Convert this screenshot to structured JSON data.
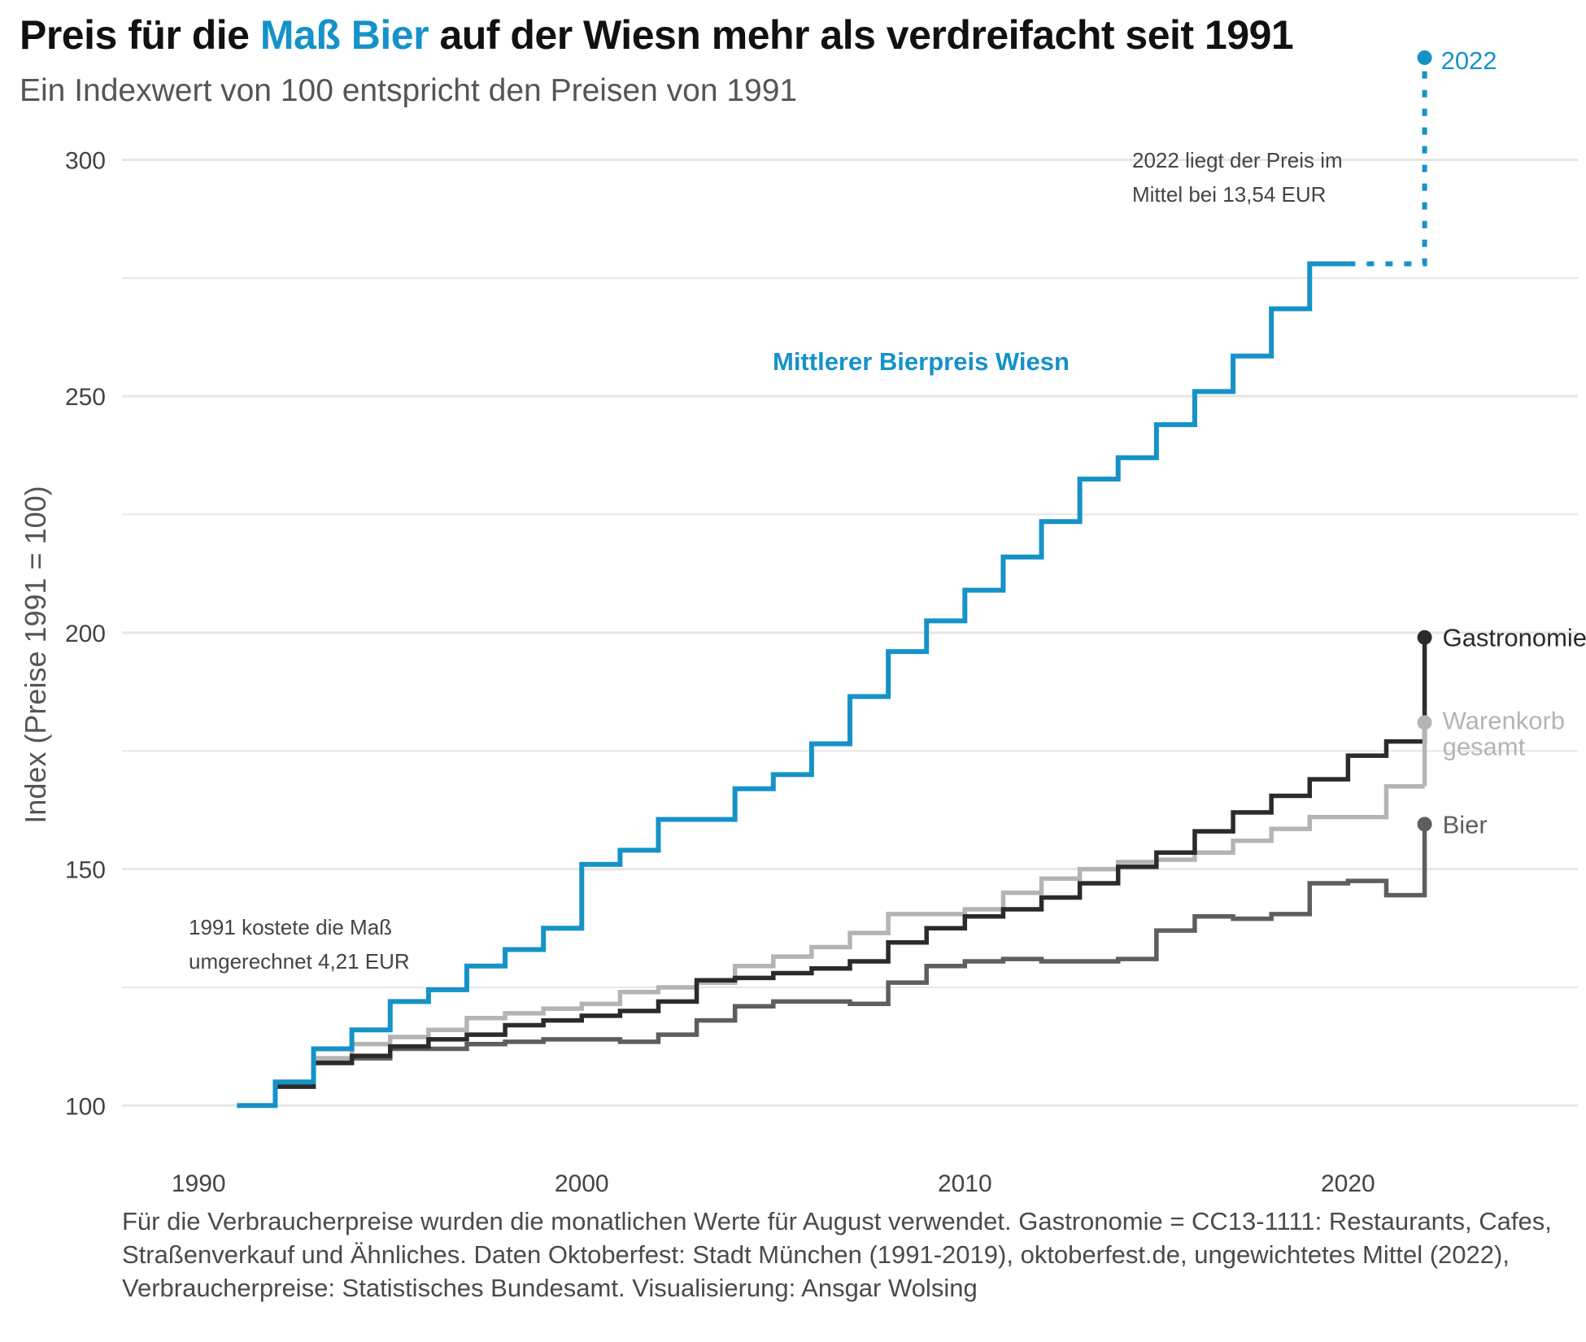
{
  "title": {
    "part1": "Preis für die ",
    "highlight": "Maß Bier",
    "part2": " auf der Wiesn mehr als verdreifacht seit 1991"
  },
  "subtitle": "Ein Indexwert von 100 entspricht den Preisen von 1991",
  "caption": "Für die Verbraucherpreise wurden die monatlichen Werte für August verwendet. Gastronomie = CC13-1111: Restaurants, Cafes, Straßenverkauf und Ähnliches. Daten Oktoberfest: Stadt München (1991-2019), oktoberfest.de, ungewichtetes Mittel (2022), Verbraucherpreise: Statistisches Bundesamt. Visualisierung: Ansgar Wolsing",
  "colors": {
    "accent": "#1592c8",
    "gastronomie": "#2b2b2b",
    "warenkorb": "#b4b4b4",
    "bier": "#5e5e5e",
    "grid": "#e6e6e6"
  },
  "chart_data": {
    "type": "line",
    "step": true,
    "ylabel": "Index (Preise 1991 = 100)",
    "xlim": [
      1988,
      2026
    ],
    "ylim": [
      93,
      308
    ],
    "x_ticks": [
      1990,
      2000,
      2010,
      2020
    ],
    "y_ticks": [
      100,
      150,
      200,
      250,
      300
    ],
    "grid": true,
    "series": [
      {
        "name": "Mittlerer Bierpreis Wiesn",
        "color": "#1592c8",
        "x": [
          1991,
          1992,
          1993,
          1994,
          1995,
          1996,
          1997,
          1998,
          1999,
          2000,
          2001,
          2002,
          2003,
          2004,
          2005,
          2006,
          2007,
          2008,
          2009,
          2010,
          2011,
          2012,
          2013,
          2014,
          2015,
          2016,
          2017,
          2018,
          2019,
          2020
        ],
        "values": [
          100,
          105,
          112,
          116,
          122,
          124.5,
          129.5,
          133,
          137.5,
          151,
          154,
          160.5,
          160.5,
          167,
          170,
          176.5,
          186.5,
          196,
          202.5,
          209,
          216,
          223.5,
          232.5,
          237,
          244,
          251,
          258.5,
          268.5,
          278,
          278
        ]
      },
      {
        "name": "Gastronomie",
        "color": "#2b2b2b",
        "x": [
          1992,
          1993,
          1994,
          1995,
          1996,
          1997,
          1998,
          1999,
          2000,
          2001,
          2002,
          2003,
          2004,
          2005,
          2006,
          2007,
          2008,
          2009,
          2010,
          2011,
          2012,
          2013,
          2014,
          2015,
          2016,
          2017,
          2018,
          2019,
          2020,
          2021,
          2022
        ],
        "values": [
          104,
          109,
          110.5,
          112.5,
          114,
          115,
          117,
          118,
          119,
          120,
          122,
          126.5,
          127,
          128,
          129,
          130.5,
          134.5,
          137.5,
          140,
          141.5,
          144,
          147,
          150.5,
          153.5,
          158,
          162,
          165.5,
          169,
          174,
          177,
          183.5
        ]
      },
      {
        "name": "Warenkorb gesamt",
        "color": "#b4b4b4",
        "x": [
          1992,
          1993,
          1994,
          1995,
          1996,
          1997,
          1998,
          1999,
          2000,
          2001,
          2002,
          2003,
          2004,
          2005,
          2006,
          2007,
          2008,
          2009,
          2010,
          2011,
          2012,
          2013,
          2014,
          2015,
          2016,
          2017,
          2018,
          2019,
          2020,
          2021,
          2022
        ],
        "values": [
          104.5,
          110,
          113,
          114.5,
          116,
          118.5,
          119.5,
          120.5,
          121.5,
          124,
          125,
          126,
          129.5,
          131.5,
          133.5,
          136.5,
          140.5,
          140.5,
          141.5,
          145,
          148,
          150,
          151.5,
          152,
          153.5,
          156,
          158.5,
          161,
          161,
          167.5,
          167.5
        ]
      },
      {
        "name": "Bier",
        "color": "#5e5e5e",
        "x": [
          1992,
          1993,
          1994,
          1995,
          1996,
          1997,
          1998,
          1999,
          2000,
          2001,
          2002,
          2003,
          2004,
          2005,
          2006,
          2007,
          2008,
          2009,
          2010,
          2011,
          2012,
          2013,
          2014,
          2015,
          2016,
          2017,
          2018,
          2019,
          2020,
          2021,
          2022
        ],
        "values": [
          104,
          109.5,
          110,
          112,
          112,
          113,
          113.5,
          114,
          114,
          113.5,
          115,
          118,
          121,
          122,
          122,
          121.5,
          126,
          129.5,
          130.5,
          131,
          130.5,
          130.5,
          131,
          137,
          140,
          139.5,
          140.5,
          147,
          147.5,
          144.5,
          149.5
        ]
      }
    ],
    "end_labels": [
      {
        "series": "Gastronomie",
        "x": 2022,
        "value": 199,
        "label": "Gastronomie"
      },
      {
        "series": "Warenkorb gesamt",
        "x": 2022,
        "value": 181,
        "label": "Warenkorb gesamt"
      },
      {
        "series": "Bier",
        "x": 2022,
        "value": 159.5,
        "label": "Bier"
      }
    ],
    "projection": {
      "series": "Mittlerer Bierpreis Wiesn",
      "x": [
        2020,
        2022,
        2022
      ],
      "values": [
        278,
        278,
        321.6
      ],
      "label": "2022"
    },
    "annotations": [
      {
        "label": "Mittlerer Bierpreis Wiesn",
        "style": "series-label"
      },
      {
        "lines": [
          "2022 liegt der Preis im",
          "Mittel bei 13,54 EUR"
        ]
      },
      {
        "lines": [
          "1991 kostete die Maß",
          "umgerechnet 4,21 EUR"
        ]
      }
    ]
  }
}
